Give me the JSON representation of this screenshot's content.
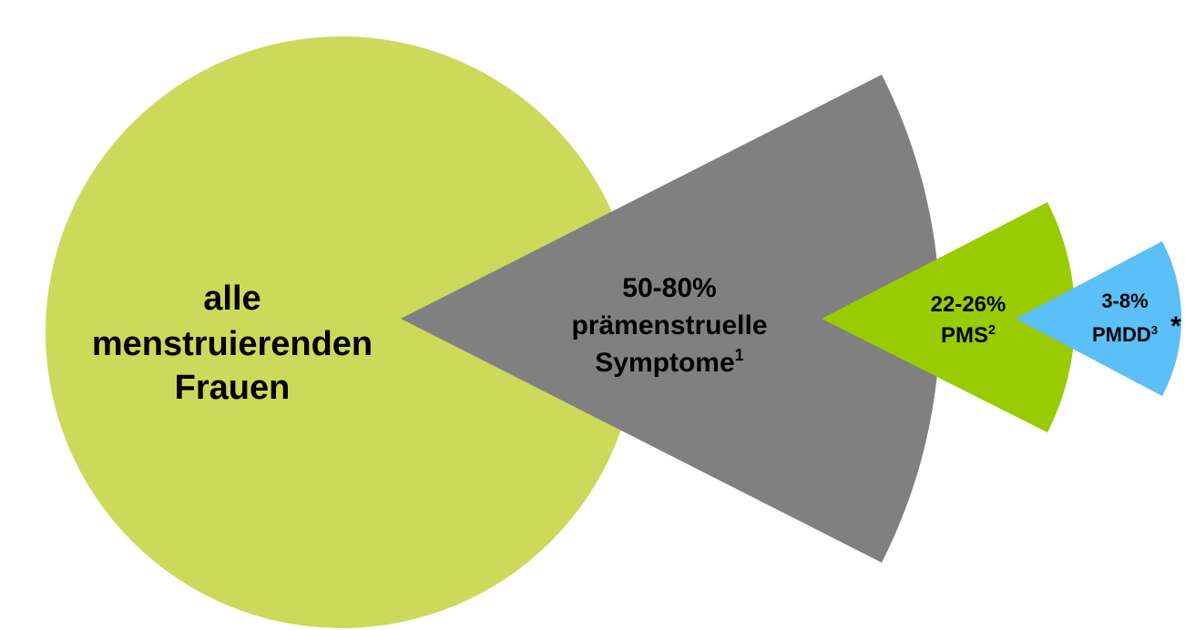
{
  "nodes": [
    {
      "label": [
        "alle",
        "menstruierenden",
        "Frauen"
      ]
    },
    {
      "percent": "50-80%",
      "label": [
        "prämenstruelle",
        "Symptome"
      ],
      "footnote": "1"
    },
    {
      "percent": "22-26%",
      "label": "PMS",
      "footnote": "2"
    },
    {
      "percent": "3-8%",
      "label": "PMDD",
      "footnote": "3",
      "asterisk": "*"
    }
  ]
}
